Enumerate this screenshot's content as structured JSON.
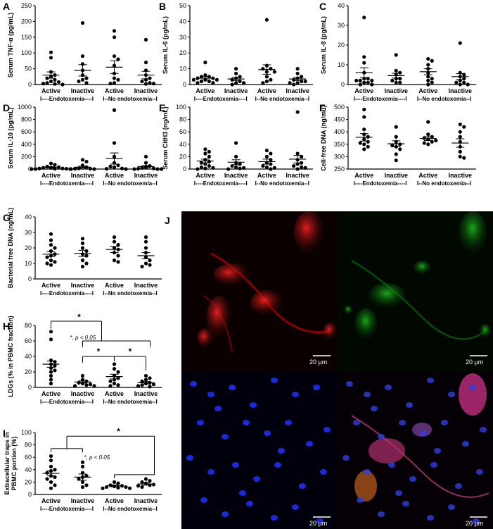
{
  "panels": [
    {
      "letter": "A",
      "ylabel": "Serum TNF-α (pg/mL)",
      "ylim": [
        0,
        250
      ],
      "ticks": [
        0,
        50,
        100,
        150,
        200,
        250
      ],
      "tick_labels": [
        "0",
        "50",
        "100",
        "150",
        "200",
        "250"
      ],
      "categories": [
        "Active",
        "Inactive",
        "Active",
        "Inactive"
      ],
      "groups": [
        "I----Endotoxemia----I",
        "I--No endotoxemia--I"
      ],
      "means": [
        30,
        45,
        55,
        30
      ],
      "sems": [
        10,
        18,
        20,
        12
      ],
      "points": [
        [
          102,
          85,
          40,
          30,
          25,
          20,
          15,
          10,
          8,
          5,
          3,
          2,
          0
        ],
        [
          195,
          90,
          65,
          45,
          30,
          20,
          15,
          10,
          5
        ],
        [
          170,
          150,
          90,
          80,
          60,
          35,
          20,
          15,
          5,
          3
        ],
        [
          142,
          70,
          45,
          30,
          20,
          15,
          10,
          5,
          3,
          2
        ]
      ]
    },
    {
      "letter": "B",
      "ylabel": "Serum IL-6 (pg/mL)",
      "ylim": [
        0,
        50
      ],
      "ticks": [
        0,
        10,
        20,
        30,
        40,
        50
      ],
      "tick_labels": [
        "0",
        "10",
        "20",
        "30",
        "40",
        "50"
      ],
      "categories": [
        "Active",
        "Inactive",
        "Active",
        "Inactive"
      ],
      "groups": [
        "I----Endotoxemia----I",
        "I--No endotoxemia--I"
      ],
      "means": [
        4,
        3.5,
        9.5,
        3.5
      ],
      "sems": [
        1,
        1,
        3,
        1
      ],
      "points": [
        [
          14,
          6,
          5,
          5,
          4,
          4,
          3,
          3,
          3,
          2,
          2,
          1,
          1
        ],
        [
          10,
          7,
          5,
          4,
          3,
          2,
          1,
          1,
          0
        ],
        [
          41,
          12,
          10,
          10,
          8,
          8,
          5,
          3,
          2,
          1
        ],
        [
          10,
          7,
          5,
          4,
          3,
          2,
          2,
          1,
          1,
          0
        ]
      ]
    },
    {
      "letter": "C",
      "ylabel": "Serum IL-8 (pg/mL)",
      "ylim": [
        0,
        40
      ],
      "ticks": [
        0,
        10,
        20,
        30,
        40
      ],
      "tick_labels": [
        "0",
        "10",
        "20",
        "30",
        "40"
      ],
      "categories": [
        "Active",
        "Inactive",
        "Active",
        "Inactive"
      ],
      "groups": [
        "I----Endotoxemia----I",
        "I--No endotoxemia--I"
      ],
      "means": [
        6,
        4.5,
        6.5,
        4
      ],
      "sems": [
        2.5,
        1.2,
        1.5,
        1.5
      ],
      "points": [
        [
          34,
          14,
          11,
          6,
          3,
          3,
          2,
          2,
          2,
          1,
          1,
          0,
          0
        ],
        [
          15,
          7,
          6,
          5,
          3,
          3,
          2,
          1,
          1
        ],
        [
          13,
          12,
          10,
          8,
          6,
          4,
          3,
          2,
          1,
          0
        ],
        [
          21,
          6,
          5,
          4,
          3,
          2,
          1,
          1,
          0,
          0
        ]
      ]
    },
    {
      "letter": "D",
      "ylabel": "Serum IL-10 (pg/mL)",
      "ylim": [
        0,
        1000
      ],
      "ticks": [
        0,
        200,
        400,
        600,
        800,
        1000
      ],
      "tick_labels": [
        "0",
        "200",
        "400",
        "600",
        "800",
        "1000"
      ],
      "categories": [
        "Active",
        "Inactive",
        "Active",
        "Inactive"
      ],
      "groups": [
        "I----Endotoxemia----I",
        "I--No endotoxemia--I"
      ],
      "means": [
        30,
        30,
        170,
        40
      ],
      "sems": [
        10,
        15,
        90,
        20
      ],
      "points": [
        [
          90,
          70,
          40,
          30,
          20,
          20,
          10,
          10,
          5,
          5,
          0,
          0,
          0
        ],
        [
          150,
          120,
          60,
          30,
          10,
          5,
          5,
          0,
          0
        ],
        [
          950,
          420,
          200,
          100,
          60,
          40,
          30,
          10,
          5,
          0
        ],
        [
          200,
          100,
          50,
          30,
          20,
          10,
          5,
          0,
          0,
          0
        ]
      ]
    },
    {
      "letter": "E",
      "ylabel": "Serum CitH3 (ng/mL)",
      "ylim": [
        0,
        100
      ],
      "ticks": [
        0,
        20,
        40,
        60,
        80,
        100
      ],
      "tick_labels": [
        "0",
        "20",
        "40",
        "60",
        "80",
        "100"
      ],
      "categories": [
        "Active",
        "Inactive",
        "Active",
        "Inactive"
      ],
      "groups": [
        "I----Endotoxemia----I",
        "I--No endotoxemia--I"
      ],
      "means": [
        13,
        11,
        12,
        16
      ],
      "sems": [
        3,
        4,
        4,
        6
      ],
      "points": [
        [
          32,
          28,
          25,
          20,
          15,
          12,
          10,
          8,
          5,
          3,
          2,
          1,
          0
        ],
        [
          42,
          20,
          10,
          8,
          5,
          3,
          2,
          1,
          0
        ],
        [
          30,
          25,
          20,
          15,
          10,
          8,
          5,
          3,
          2,
          0
        ],
        [
          92,
          25,
          20,
          15,
          10,
          8,
          5,
          3,
          2,
          0
        ]
      ]
    },
    {
      "letter": "F",
      "ylabel": "Cell-free DNA (ng/mL)",
      "ylim": [
        250,
        500
      ],
      "ticks": [
        250,
        300,
        350,
        400,
        450,
        500
      ],
      "tick_labels": [
        "250",
        "300",
        "350",
        "400",
        "450",
        "500"
      ],
      "categories": [
        "Active",
        "Inactive",
        "Active",
        "Inactive"
      ],
      "groups": [
        "I----Endotoxemia----I",
        "I--No endotoxemia--I"
      ],
      "means": [
        378,
        352,
        373,
        355
      ],
      "sems": [
        15,
        12,
        8,
        17
      ],
      "points": [
        [
          490,
          460,
          410,
          390,
          380,
          370,
          360,
          355,
          350,
          340,
          330
        ],
        [
          420,
          380,
          360,
          350,
          345,
          340,
          330,
          310,
          285
        ],
        [
          440,
          390,
          380,
          375,
          370,
          365,
          360,
          355,
          350
        ],
        [
          430,
          420,
          400,
          380,
          360,
          340,
          320,
          300,
          295
        ]
      ]
    },
    {
      "letter": "G",
      "ylabel": "Bacterial free DNA (ng/mL)",
      "ylim": [
        0,
        40
      ],
      "ticks": [
        0,
        10,
        20,
        30,
        40
      ],
      "tick_labels": [
        "0",
        "10",
        "20",
        "30",
        "40"
      ],
      "categories": [
        "Active",
        "Inactive",
        "Active",
        "Inactive"
      ],
      "groups": [
        "I----Endotoxemia----I",
        "I--No endotoxemia--I"
      ],
      "means": [
        16,
        16.5,
        19,
        15
      ],
      "sems": [
        1.5,
        2,
        2,
        2
      ],
      "points": [
        [
          29,
          25,
          22,
          20,
          18,
          16,
          15,
          14,
          12,
          11,
          10,
          9
        ],
        [
          26,
          23,
          20,
          18,
          16,
          15,
          12,
          10,
          8
        ],
        [
          27,
          24,
          22,
          20,
          19,
          17,
          15,
          12,
          11
        ],
        [
          27,
          24,
          20,
          17,
          14,
          12,
          10,
          9,
          8
        ]
      ]
    },
    {
      "letter": "H",
      "ylabel": "LDGs (% in PBMC fraction)",
      "ylim": [
        0,
        80
      ],
      "ticks": [
        0,
        20,
        40,
        60,
        80
      ],
      "tick_labels": [
        "0",
        "20",
        "40",
        "60",
        "80"
      ],
      "categories": [
        "Active",
        "Inactive",
        "Active",
        "Inactive"
      ],
      "groups": [
        "I----Endotoxemia----I",
        "I--No endotoxemia--I"
      ],
      "means": [
        30,
        7,
        14,
        6
      ],
      "sems": [
        4,
        1.5,
        3,
        1.5
      ],
      "points": [
        [
          72,
          62,
          35,
          33,
          30,
          28,
          25,
          22,
          20,
          15,
          10,
          5
        ],
        [
          15,
          10,
          8,
          6,
          5,
          4,
          3,
          2,
          2
        ],
        [
          30,
          24,
          20,
          15,
          12,
          10,
          8,
          5,
          3,
          2
        ],
        [
          15,
          12,
          10,
          8,
          6,
          5,
          4,
          3,
          2,
          1
        ]
      ],
      "note": "*, p < 0.05",
      "sig": "*"
    },
    {
      "letter": "I",
      "ylabel": "Extracellular traps in PBMC portion (%)",
      "ylim": [
        0,
        100
      ],
      "ticks": [
        0,
        20,
        40,
        60,
        80,
        100
      ],
      "tick_labels": [
        "0",
        "20",
        "40",
        "60",
        "80",
        "100"
      ],
      "categories": [
        "Active",
        "Inactive",
        "Active",
        "Inactive"
      ],
      "groups": [
        "I----Endotoxemia----I",
        "I--No endotoxemia--I"
      ],
      "means": [
        34,
        28,
        14,
        17
      ],
      "sems": [
        4,
        5,
        1.5,
        2
      ],
      "points": [
        [
          62,
          55,
          45,
          40,
          38,
          35,
          30,
          28,
          25,
          20,
          15,
          10
        ],
        [
          52,
          45,
          35,
          30,
          28,
          25,
          20,
          15,
          12
        ],
        [
          20,
          18,
          15,
          14,
          13,
          12,
          12,
          11,
          10,
          10
        ],
        [
          25,
          22,
          20,
          18,
          16,
          15,
          14,
          12
        ]
      ],
      "note": "*, p < 0.05",
      "sig": "*"
    }
  ],
  "micrograph": {
    "letter": "J",
    "scalebar_label": "20 μm",
    "channels": [
      "red",
      "green",
      "blue",
      "merge"
    ]
  },
  "chart_data": [
    {
      "type": "scatter",
      "ylabel": "Serum TNF-α (pg/mL)",
      "categories": [
        "Active",
        "Inactive",
        "Active",
        "Inactive"
      ],
      "ylim": [
        0,
        250
      ]
    },
    {
      "type": "scatter",
      "ylabel": "Serum IL-6 (pg/mL)",
      "categories": [
        "Active",
        "Inactive",
        "Active",
        "Inactive"
      ],
      "ylim": [
        0,
        50
      ]
    },
    {
      "type": "scatter",
      "ylabel": "Serum IL-8 (pg/mL)",
      "categories": [
        "Active",
        "Inactive",
        "Active",
        "Inactive"
      ],
      "ylim": [
        0,
        40
      ]
    },
    {
      "type": "scatter",
      "ylabel": "Serum IL-10 (pg/mL)",
      "categories": [
        "Active",
        "Inactive",
        "Active",
        "Inactive"
      ],
      "ylim": [
        0,
        1000
      ]
    },
    {
      "type": "scatter",
      "ylabel": "Serum CitH3 (ng/mL)",
      "categories": [
        "Active",
        "Inactive",
        "Active",
        "Inactive"
      ],
      "ylim": [
        0,
        100
      ]
    },
    {
      "type": "scatter",
      "ylabel": "Cell-free DNA (ng/mL)",
      "categories": [
        "Active",
        "Inactive",
        "Active",
        "Inactive"
      ],
      "ylim": [
        250,
        500
      ]
    },
    {
      "type": "scatter",
      "ylabel": "Bacterial free DNA (ng/mL)",
      "categories": [
        "Active",
        "Inactive",
        "Active",
        "Inactive"
      ],
      "ylim": [
        0,
        40
      ]
    },
    {
      "type": "scatter",
      "ylabel": "LDGs (% in PBMC fraction)",
      "categories": [
        "Active",
        "Inactive",
        "Active",
        "Inactive"
      ],
      "ylim": [
        0,
        80
      ]
    },
    {
      "type": "scatter",
      "ylabel": "Extracellular traps in PBMC portion (%)",
      "categories": [
        "Active",
        "Inactive",
        "Active",
        "Inactive"
      ],
      "ylim": [
        0,
        100
      ]
    }
  ]
}
